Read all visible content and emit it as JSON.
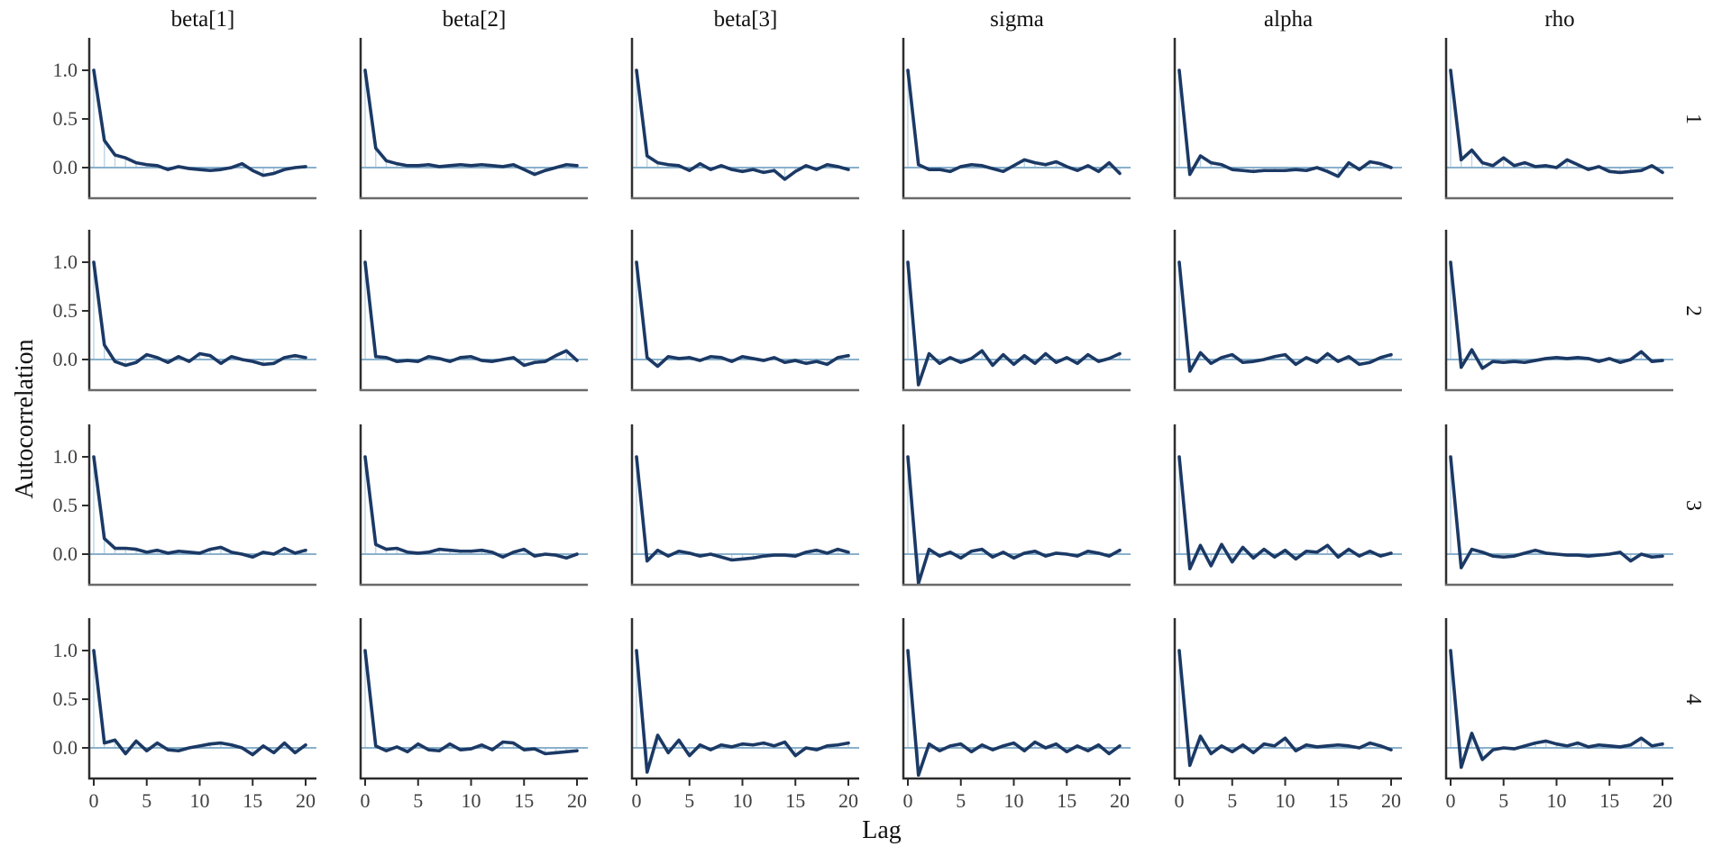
{
  "chart_data": {
    "type": "line",
    "title": "",
    "xlabel": "Lag",
    "ylabel": "Autocorrelation",
    "parameters": [
      "beta[1]",
      "beta[2]",
      "beta[3]",
      "sigma",
      "alpha",
      "rho"
    ],
    "chains": [
      "1",
      "2",
      "3",
      "4"
    ],
    "lags": [
      0,
      1,
      2,
      3,
      4,
      5,
      6,
      7,
      8,
      9,
      10,
      11,
      12,
      13,
      14,
      15,
      16,
      17,
      18,
      19,
      20
    ],
    "x_ticks": [
      0,
      5,
      10,
      15,
      20
    ],
    "x_tick_labels": [
      "0",
      "5",
      "10",
      "15",
      "20"
    ],
    "y_ticks": [
      0.0,
      0.5,
      1.0
    ],
    "y_tick_labels": [
      "0.0",
      "0.5",
      "1.0"
    ],
    "xlim": [
      0,
      20
    ],
    "ylim": [
      -0.32,
      1.33
    ],
    "grid": "off",
    "legend": "none",
    "style": {
      "stems": true,
      "zero_line": true
    },
    "colors": {
      "line": "#1b3965",
      "stem": "#bdd5e7",
      "zero_line": "#8ab1cc",
      "spine": "#2e2e2e",
      "bottom_axis_inner": "#6a6a6a",
      "bottom_axis_last": "#2b2b2b",
      "tick_text": "#3f3f3f",
      "title_text": "#111111"
    },
    "series": [
      {
        "chain": "1",
        "parameter": "beta[1]",
        "values": [
          1.0,
          0.28,
          0.13,
          0.1,
          0.05,
          0.03,
          0.02,
          -0.02,
          0.01,
          -0.01,
          -0.02,
          -0.03,
          -0.02,
          0.0,
          0.04,
          -0.03,
          -0.08,
          -0.06,
          -0.02,
          0.0,
          0.01
        ]
      },
      {
        "chain": "1",
        "parameter": "beta[2]",
        "values": [
          1.0,
          0.2,
          0.07,
          0.04,
          0.02,
          0.02,
          0.03,
          0.01,
          0.02,
          0.03,
          0.02,
          0.03,
          0.02,
          0.01,
          0.03,
          -0.02,
          -0.07,
          -0.03,
          0.0,
          0.03,
          0.02
        ]
      },
      {
        "chain": "1",
        "parameter": "beta[3]",
        "values": [
          1.0,
          0.12,
          0.05,
          0.03,
          0.02,
          -0.03,
          0.04,
          -0.02,
          0.02,
          -0.02,
          -0.04,
          -0.02,
          -0.05,
          -0.03,
          -0.12,
          -0.04,
          0.02,
          -0.02,
          0.03,
          0.01,
          -0.02
        ]
      },
      {
        "chain": "1",
        "parameter": "sigma",
        "values": [
          1.0,
          0.03,
          -0.02,
          -0.02,
          -0.04,
          0.01,
          0.03,
          0.02,
          -0.01,
          -0.04,
          0.02,
          0.08,
          0.05,
          0.03,
          0.06,
          0.01,
          -0.03,
          0.02,
          -0.04,
          0.05,
          -0.06
        ]
      },
      {
        "chain": "1",
        "parameter": "alpha",
        "values": [
          1.0,
          -0.07,
          0.12,
          0.05,
          0.03,
          -0.02,
          -0.03,
          -0.04,
          -0.03,
          -0.03,
          -0.03,
          -0.02,
          -0.03,
          0.0,
          -0.04,
          -0.09,
          0.05,
          -0.02,
          0.06,
          0.04,
          0.0
        ]
      },
      {
        "chain": "1",
        "parameter": "rho",
        "values": [
          1.0,
          0.08,
          0.18,
          0.05,
          0.02,
          0.1,
          0.02,
          0.05,
          0.01,
          0.02,
          0.0,
          0.08,
          0.03,
          -0.02,
          0.01,
          -0.04,
          -0.05,
          -0.04,
          -0.03,
          0.02,
          -0.05
        ]
      },
      {
        "chain": "2",
        "parameter": "beta[1]",
        "values": [
          1.0,
          0.15,
          -0.02,
          -0.06,
          -0.03,
          0.05,
          0.02,
          -0.03,
          0.03,
          -0.02,
          0.06,
          0.04,
          -0.04,
          0.03,
          0.0,
          -0.02,
          -0.05,
          -0.04,
          0.02,
          0.04,
          0.02
        ]
      },
      {
        "chain": "2",
        "parameter": "beta[2]",
        "values": [
          1.0,
          0.03,
          0.02,
          -0.02,
          -0.01,
          -0.02,
          0.03,
          0.01,
          -0.02,
          0.02,
          0.03,
          -0.01,
          -0.02,
          0.0,
          0.02,
          -0.06,
          -0.03,
          -0.02,
          0.04,
          0.09,
          -0.01
        ]
      },
      {
        "chain": "2",
        "parameter": "beta[3]",
        "values": [
          1.0,
          0.02,
          -0.07,
          0.03,
          0.01,
          0.02,
          -0.01,
          0.03,
          0.02,
          -0.02,
          0.03,
          0.01,
          -0.01,
          0.02,
          -0.03,
          -0.01,
          -0.04,
          -0.02,
          -0.05,
          0.02,
          0.04
        ]
      },
      {
        "chain": "2",
        "parameter": "sigma",
        "values": [
          1.0,
          -0.26,
          0.06,
          -0.04,
          0.02,
          -0.03,
          0.01,
          0.09,
          -0.06,
          0.05,
          -0.05,
          0.04,
          -0.04,
          0.06,
          -0.03,
          0.02,
          -0.04,
          0.05,
          -0.02,
          0.01,
          0.06
        ]
      },
      {
        "chain": "2",
        "parameter": "alpha",
        "values": [
          1.0,
          -0.12,
          0.07,
          -0.04,
          0.02,
          0.05,
          -0.03,
          -0.02,
          0.0,
          0.03,
          0.05,
          -0.05,
          0.02,
          -0.03,
          0.06,
          -0.02,
          0.03,
          -0.05,
          -0.03,
          0.02,
          0.05
        ]
      },
      {
        "chain": "2",
        "parameter": "rho",
        "values": [
          1.0,
          -0.08,
          0.1,
          -0.09,
          -0.02,
          -0.03,
          -0.02,
          -0.03,
          -0.01,
          0.01,
          0.02,
          0.01,
          0.02,
          0.01,
          -0.02,
          0.01,
          -0.03,
          0.0,
          0.08,
          -0.02,
          -0.01
        ]
      },
      {
        "chain": "3",
        "parameter": "beta[1]",
        "values": [
          1.0,
          0.16,
          0.06,
          0.06,
          0.05,
          0.02,
          0.04,
          0.01,
          0.03,
          0.02,
          0.01,
          0.05,
          0.07,
          0.02,
          0.0,
          -0.03,
          0.02,
          0.0,
          0.06,
          0.01,
          0.04
        ]
      },
      {
        "chain": "3",
        "parameter": "beta[2]",
        "values": [
          1.0,
          0.1,
          0.05,
          0.06,
          0.02,
          0.01,
          0.02,
          0.05,
          0.04,
          0.03,
          0.03,
          0.04,
          0.02,
          -0.03,
          0.02,
          0.05,
          -0.02,
          0.0,
          -0.01,
          -0.04,
          0.0
        ]
      },
      {
        "chain": "3",
        "parameter": "beta[3]",
        "values": [
          1.0,
          -0.07,
          0.04,
          -0.02,
          0.03,
          0.01,
          -0.02,
          0.0,
          -0.03,
          -0.06,
          -0.05,
          -0.04,
          -0.02,
          -0.01,
          -0.01,
          -0.02,
          0.02,
          0.04,
          0.01,
          0.05,
          0.02
        ]
      },
      {
        "chain": "3",
        "parameter": "sigma",
        "values": [
          1.0,
          -0.3,
          0.05,
          -0.02,
          0.02,
          -0.04,
          0.03,
          0.05,
          -0.03,
          0.02,
          -0.04,
          0.01,
          0.03,
          -0.02,
          0.01,
          0.0,
          -0.02,
          0.03,
          0.01,
          -0.02,
          0.04
        ]
      },
      {
        "chain": "3",
        "parameter": "alpha",
        "values": [
          1.0,
          -0.15,
          0.09,
          -0.12,
          0.1,
          -0.08,
          0.07,
          -0.04,
          0.05,
          -0.03,
          0.04,
          -0.05,
          0.03,
          0.02,
          0.09,
          -0.03,
          0.05,
          -0.02,
          0.03,
          -0.02,
          0.01
        ]
      },
      {
        "chain": "3",
        "parameter": "rho",
        "values": [
          1.0,
          -0.14,
          0.05,
          0.02,
          -0.02,
          -0.03,
          -0.02,
          0.01,
          0.04,
          0.01,
          0.0,
          -0.01,
          -0.01,
          -0.02,
          -0.01,
          0.0,
          0.02,
          -0.07,
          0.0,
          -0.03,
          -0.02
        ]
      },
      {
        "chain": "4",
        "parameter": "beta[1]",
        "values": [
          1.0,
          0.05,
          0.08,
          -0.06,
          0.07,
          -0.03,
          0.05,
          -0.02,
          -0.03,
          0.0,
          0.02,
          0.04,
          0.05,
          0.03,
          0.0,
          -0.07,
          0.02,
          -0.05,
          0.05,
          -0.05,
          0.03
        ]
      },
      {
        "chain": "4",
        "parameter": "beta[2]",
        "values": [
          1.0,
          0.02,
          -0.03,
          0.01,
          -0.04,
          0.04,
          -0.02,
          -0.03,
          0.04,
          -0.02,
          -0.01,
          0.03,
          -0.02,
          0.06,
          0.05,
          -0.02,
          -0.01,
          -0.06,
          -0.05,
          -0.04,
          -0.03
        ]
      },
      {
        "chain": "4",
        "parameter": "beta[3]",
        "values": [
          1.0,
          -0.25,
          0.13,
          -0.05,
          0.08,
          -0.08,
          0.03,
          -0.02,
          0.03,
          0.01,
          0.04,
          0.03,
          0.05,
          0.02,
          0.06,
          -0.08,
          0.0,
          -0.02,
          0.02,
          0.03,
          0.05
        ]
      },
      {
        "chain": "4",
        "parameter": "sigma",
        "values": [
          1.0,
          -0.28,
          0.04,
          -0.03,
          0.02,
          0.04,
          -0.04,
          0.03,
          -0.02,
          0.02,
          0.05,
          -0.03,
          0.06,
          0.0,
          0.04,
          -0.04,
          0.02,
          -0.03,
          0.03,
          -0.06,
          0.02
        ]
      },
      {
        "chain": "4",
        "parameter": "alpha",
        "values": [
          1.0,
          -0.18,
          0.12,
          -0.06,
          0.02,
          -0.04,
          0.03,
          -0.05,
          0.04,
          0.02,
          0.1,
          -0.03,
          0.03,
          0.01,
          0.02,
          0.03,
          0.02,
          0.0,
          0.05,
          0.02,
          -0.02
        ]
      },
      {
        "chain": "4",
        "parameter": "rho",
        "values": [
          1.0,
          -0.2,
          0.15,
          -0.12,
          -0.02,
          0.0,
          -0.01,
          0.02,
          0.05,
          0.07,
          0.04,
          0.02,
          0.05,
          0.01,
          0.03,
          0.02,
          0.01,
          0.03,
          0.1,
          0.02,
          0.04
        ]
      }
    ]
  }
}
